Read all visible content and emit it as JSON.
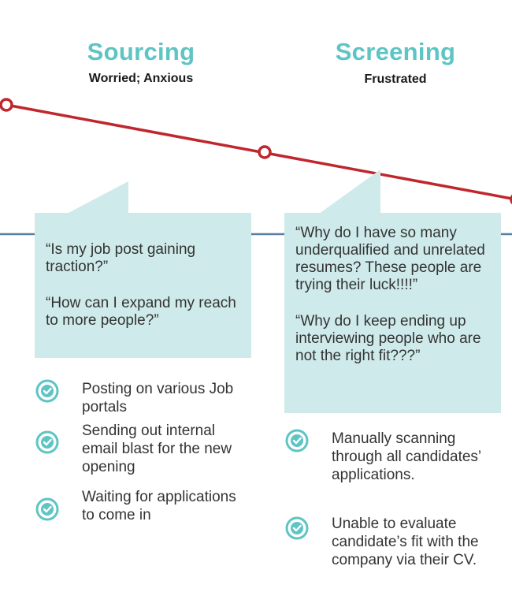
{
  "stages": [
    {
      "title": "Sourcing",
      "emotion": "Worried; Anxious",
      "quotes": [
        "“Is my job post gaining traction?”",
        "“How can I expand my reach to more people?”"
      ],
      "actions": [
        "Posting on various Job portals",
        "Sending out internal email blast for the new opening",
        "Waiting for applications to come in"
      ]
    },
    {
      "title": "Screening",
      "emotion": "Frustrated",
      "quotes": [
        "“Why do I have so many underqualified and unrelated resumes? These people are trying their luck!!!!”",
        "“Why do I keep ending up interviewing people who are not the right fit???”"
      ],
      "actions": [
        "Manually scanning through all candidates’ applications.",
        "Unable to evaluate candidate’s fit with the company via their CV."
      ]
    }
  ],
  "colors": {
    "title": "#5ec4c4",
    "emotion_line": "#c0272d",
    "divider": "#5a7fa0",
    "bubble": "#cfeaea",
    "check": "#5ec4c4"
  },
  "icons": {
    "action_marker": "check-circle-icon",
    "emotion_point": "emotion-point-icon"
  }
}
